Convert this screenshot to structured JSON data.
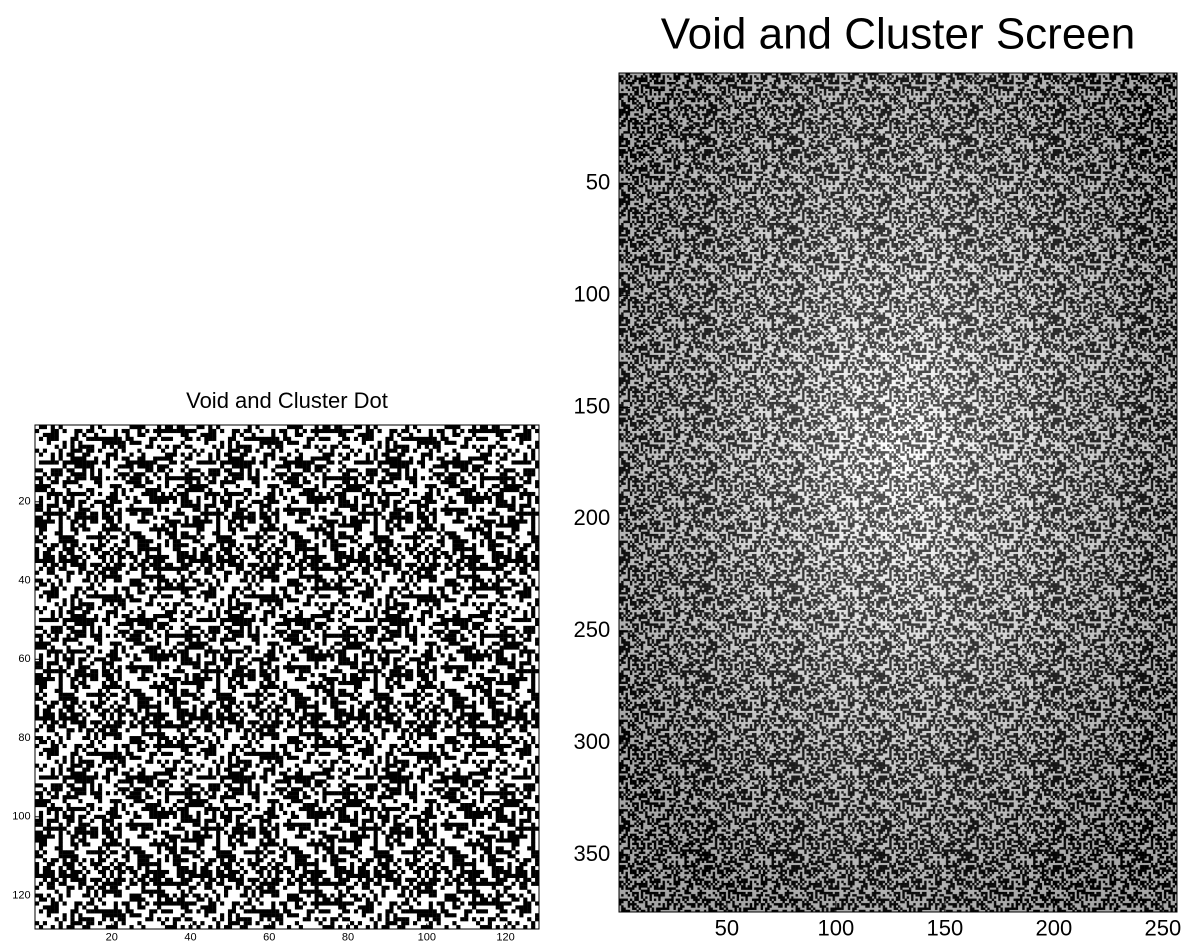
{
  "chart_data": [
    {
      "type": "image",
      "title": "Void and Cluster Dot",
      "xlim": [
        0.5,
        128.5
      ],
      "ylim": [
        0.5,
        128.5
      ],
      "xticks": [
        20,
        40,
        60,
        80,
        100,
        120
      ],
      "yticks": [
        20,
        40,
        60,
        80,
        100,
        120
      ]
    },
    {
      "type": "image",
      "title": "Void and Cluster Screen",
      "xlim": [
        0.5,
        256.5
      ],
      "ylim": [
        0.5,
        375.5
      ],
      "xticks": [
        50,
        100,
        150,
        200,
        250
      ],
      "yticks": [
        50,
        100,
        150,
        200,
        250,
        300,
        350
      ]
    }
  ]
}
